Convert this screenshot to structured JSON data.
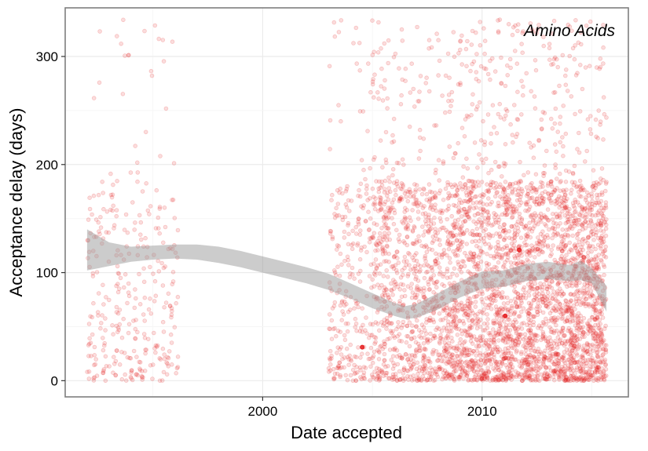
{
  "chart_data": {
    "type": "scatter",
    "title": "",
    "annotation": "Amino Acids",
    "xlabel": "Date accepted",
    "ylabel": "Acceptance delay (days)",
    "x_axis_type": "date",
    "xlim": [
      "1991-01-01",
      "2016-09-01"
    ],
    "ylim": [
      -15,
      345
    ],
    "x_ticks": [
      "2000",
      "2010"
    ],
    "y_ticks": [
      0,
      100,
      200,
      300
    ],
    "grid": true,
    "legend": "none",
    "point_color": "#e41a1c",
    "point_opacity": 0.15,
    "smooth_color": "#999999",
    "smooth_band": {
      "x": [
        "1992-01-01",
        "1993-01-01",
        "1994-01-01",
        "1995-01-01",
        "1996-01-01",
        "1997-01-01",
        "1998-01-01",
        "1999-01-01",
        "2000-01-01",
        "2001-01-01",
        "2002-01-01",
        "2003-01-01",
        "2004-01-01",
        "2005-01-01",
        "2006-01-01",
        "2006-07-01",
        "2007-01-01",
        "2008-01-01",
        "2009-01-01",
        "2010-01-01",
        "2011-01-01",
        "2012-01-01",
        "2013-01-01",
        "2014-01-01",
        "2014-07-01",
        "2015-01-01",
        "2015-09-01"
      ],
      "lower": [
        102,
        106,
        110,
        112,
        113,
        112,
        109,
        105,
        100,
        95,
        90,
        84,
        76,
        67,
        60,
        57,
        58,
        66,
        77,
        85,
        87,
        92,
        94,
        92,
        93,
        90,
        64
      ],
      "upper": [
        140,
        128,
        124,
        125,
        126,
        126,
        124,
        120,
        115,
        110,
        105,
        99,
        90,
        81,
        72,
        69,
        71,
        81,
        92,
        101,
        102,
        108,
        110,
        107,
        111,
        104,
        88
      ]
    },
    "clusters": [
      {
        "start": "1992-01-01",
        "end": "1996-03-01",
        "count": 320
      },
      {
        "start": "2003-01-01",
        "end": "2005-01-01",
        "count": 260
      },
      {
        "start": "2005-01-01",
        "end": "2008-06-01",
        "count": 900
      },
      {
        "start": "2008-06-01",
        "end": "2011-01-01",
        "count": 1000
      },
      {
        "start": "2011-01-01",
        "end": "2013-06-01",
        "count": 1000
      },
      {
        "start": "2013-06-01",
        "end": "2015-09-01",
        "count": 1050
      }
    ],
    "emphasized_points": [
      {
        "x": "2004-07-15",
        "y": 31
      },
      {
        "x": "2011-01-20",
        "y": 60
      },
      {
        "x": "2011-09-10",
        "y": 121
      }
    ]
  }
}
